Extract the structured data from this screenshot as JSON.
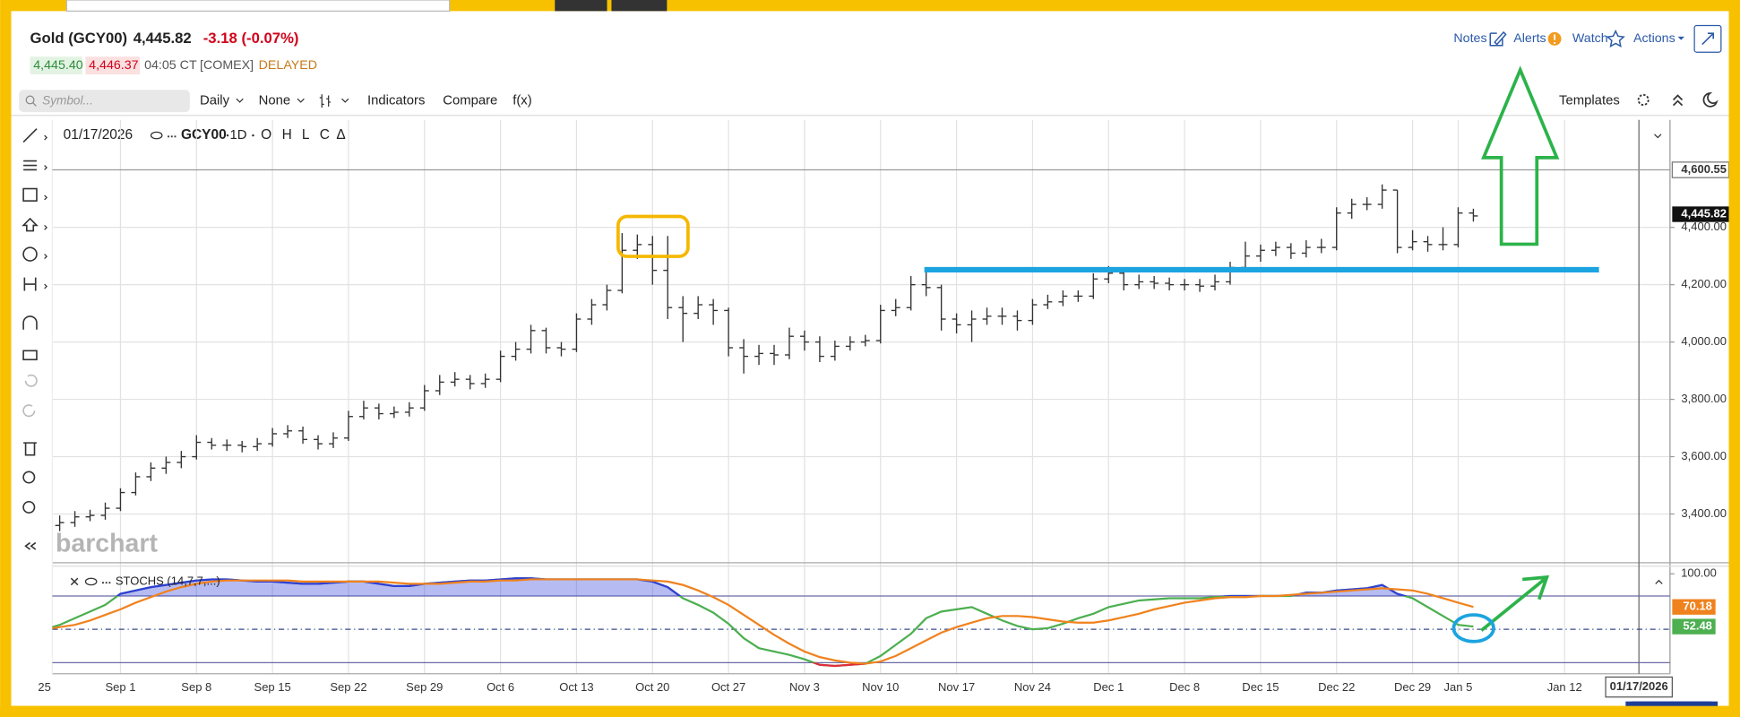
{
  "header": {
    "title": "Gold (GCY00)",
    "last": "4,445.82",
    "change": "-3.18 (-0.07%)",
    "bid": "4,445.40",
    "ask": "4,446.37",
    "time": "04:05 CT",
    "exchange": "[COMEX]",
    "status": "DELAYED"
  },
  "actions": [
    "Notes",
    "Alerts",
    "Watch",
    "Actions"
  ],
  "toolbar": {
    "symbol_placeholder": "Symbol...",
    "interval": "Daily",
    "aggregation": "None",
    "items": [
      "Indicators",
      "Compare",
      "f(x)"
    ],
    "templates": "Templates"
  },
  "chart_data": [
    {
      "type": "ohlc",
      "legend": {
        "date": "01/17/2026",
        "symbol": "GCY00",
        "interval": "1D",
        "fields": [
          "O",
          "H",
          "L",
          "C",
          "Δ"
        ]
      },
      "watermark": "barchart",
      "categories": [
        "25",
        null,
        null,
        null,
        null,
        "Sep 1",
        null,
        null,
        null,
        null,
        "Sep 8",
        null,
        null,
        null,
        null,
        "Sep 15",
        null,
        null,
        null,
        null,
        "Sep 22",
        null,
        null,
        null,
        null,
        "Sep 29",
        null,
        null,
        null,
        null,
        "Oct 6",
        null,
        null,
        null,
        null,
        "Oct 13",
        null,
        null,
        null,
        null,
        "Oct 20",
        null,
        null,
        null,
        null,
        "Oct 27",
        null,
        null,
        null,
        null,
        "Nov 3",
        null,
        null,
        null,
        null,
        "Nov 10",
        null,
        null,
        null,
        null,
        "Nov 17",
        null,
        null,
        null,
        null,
        "Nov 24",
        null,
        null,
        null,
        null,
        "Dec 1",
        null,
        null,
        null,
        null,
        "Dec 8",
        null,
        null,
        null,
        null,
        "Dec 15",
        null,
        null,
        null,
        null,
        "Dec 22",
        null,
        null,
        null,
        null,
        "Dec 29",
        null,
        null,
        "Jan 5",
        null,
        null,
        null,
        null,
        null,
        null,
        "Jan 12"
      ],
      "open": [
        null,
        3360,
        3370,
        3390,
        3395,
        3420,
        3475,
        3530,
        3560,
        3580,
        3600,
        3650,
        3640,
        3640,
        3635,
        3645,
        3680,
        3690,
        3660,
        3645,
        3665,
        3740,
        3770,
        3750,
        3755,
        3770,
        3830,
        3860,
        3870,
        3855,
        3870,
        3950,
        3975,
        4040,
        3980,
        3975,
        4080,
        4130,
        4180,
        4320,
        4340,
        4250,
        4120,
        4100,
        4130,
        4110,
        3980,
        3950,
        3960,
        3955,
        4020,
        4000,
        3950,
        3985,
        4000,
        4005,
        4110,
        4120,
        4200,
        4190,
        4080,
        4060,
        4080,
        4090,
        4090,
        4075,
        4130,
        4140,
        4160,
        4160,
        4220,
        4240,
        4200,
        4210,
        4205,
        4200,
        4200,
        4195,
        4210,
        4260,
        4300,
        4320,
        4330,
        4310,
        4330,
        4330,
        4450,
        4480,
        4480,
        4530,
        4330,
        4350,
        4340,
        4340,
        4450,
        null,
        null,
        null,
        null,
        null,
        null
      ],
      "high": [
        null,
        3395,
        3410,
        3415,
        3440,
        3490,
        3545,
        3580,
        3600,
        3620,
        3675,
        3665,
        3660,
        3655,
        3665,
        3700,
        3710,
        3705,
        3675,
        3685,
        3760,
        3795,
        3785,
        3775,
        3790,
        3850,
        3885,
        3895,
        3885,
        3890,
        3970,
        4000,
        4060,
        4050,
        4000,
        4100,
        4150,
        4200,
        4380,
        4375,
        4370,
        4370,
        4160,
        4160,
        4150,
        4120,
        4010,
        3990,
        3990,
        4050,
        4040,
        4020,
        4005,
        4020,
        4025,
        4130,
        4150,
        4230,
        4245,
        4200,
        4100,
        4110,
        4120,
        4120,
        4110,
        4150,
        4165,
        4180,
        4180,
        4240,
        4265,
        4255,
        4235,
        4230,
        4225,
        4220,
        4220,
        4235,
        4280,
        4350,
        4340,
        4350,
        4345,
        4355,
        4360,
        4470,
        4500,
        4505,
        4550,
        4530,
        4390,
        4370,
        4400,
        4470,
        4465,
        null,
        null,
        null,
        null,
        null,
        null
      ],
      "low": [
        null,
        3340,
        3355,
        3375,
        3380,
        3410,
        3465,
        3515,
        3540,
        3560,
        3590,
        3625,
        3620,
        3615,
        3620,
        3635,
        3665,
        3645,
        3625,
        3630,
        3655,
        3730,
        3730,
        3735,
        3740,
        3760,
        3815,
        3845,
        3835,
        3840,
        3860,
        3935,
        3960,
        3960,
        3950,
        3965,
        4060,
        4110,
        4170,
        4290,
        4200,
        4080,
        4000,
        4080,
        4060,
        3950,
        3890,
        3920,
        3920,
        3940,
        3970,
        3930,
        3935,
        3970,
        3985,
        3995,
        4090,
        4110,
        4160,
        4040,
        4030,
        4000,
        4060,
        4060,
        4040,
        4060,
        4115,
        4125,
        4140,
        4150,
        4205,
        4180,
        4185,
        4185,
        4180,
        4180,
        4175,
        4180,
        4200,
        4250,
        4280,
        4300,
        4290,
        4295,
        4310,
        4320,
        4430,
        4460,
        4465,
        4310,
        4320,
        4315,
        4320,
        4330,
        4420,
        null,
        null,
        null,
        null,
        null,
        null
      ],
      "close": [
        null,
        3370,
        3390,
        3395,
        3420,
        3475,
        3530,
        3560,
        3580,
        3600,
        3650,
        3640,
        3640,
        3635,
        3645,
        3680,
        3690,
        3660,
        3645,
        3665,
        3740,
        3770,
        3750,
        3755,
        3770,
        3830,
        3860,
        3870,
        3855,
        3870,
        3950,
        3975,
        4040,
        3980,
        3975,
        4080,
        4130,
        4180,
        4320,
        4340,
        4250,
        4120,
        4100,
        4130,
        4110,
        3980,
        3950,
        3960,
        3955,
        4020,
        4000,
        3950,
        3985,
        4000,
        4005,
        4110,
        4120,
        4200,
        4190,
        4080,
        4060,
        4080,
        4090,
        4090,
        4075,
        4130,
        4140,
        4160,
        4160,
        4220,
        4240,
        4200,
        4210,
        4205,
        4200,
        4200,
        4195,
        4210,
        4260,
        4300,
        4320,
        4330,
        4310,
        4330,
        4330,
        4450,
        4480,
        4480,
        4530,
        4330,
        4350,
        4340,
        4340,
        4450,
        4440,
        null,
        null,
        null,
        null,
        null,
        null
      ],
      "color": "#333333",
      "ylim": [
        3230,
        4775
      ],
      "yticks": [
        {
          "value": 3400,
          "label": "3,400.00"
        },
        {
          "value": 3600,
          "label": "3,600.00"
        },
        {
          "value": 3800,
          "label": "3,800.00"
        },
        {
          "value": 4000,
          "label": "4,000.00"
        },
        {
          "value": 4200,
          "label": "4,200.00"
        },
        {
          "value": 4400,
          "label": "4,400.00"
        }
      ],
      "price_line": {
        "value": 4600.55,
        "label": "4,600.55"
      },
      "last_price": {
        "value": 4445.82,
        "label": "4,445.82"
      },
      "grid": true
    },
    {
      "type": "line",
      "title": "STOCHS (14,7,7,...)",
      "series": [
        {
          "color": "#4caf50",
          "values": [
            50,
            54,
            60,
            66,
            72,
            82,
            85,
            88,
            90,
            92,
            94,
            95,
            95,
            94,
            93,
            93,
            92,
            91,
            91,
            92,
            93,
            93,
            91,
            89,
            89,
            91,
            92,
            93,
            94,
            94,
            95,
            96,
            96,
            95,
            95,
            95,
            95,
            95,
            95,
            95,
            93,
            88,
            78,
            72,
            65,
            55,
            42,
            33,
            30,
            27,
            23,
            18,
            17,
            18,
            19,
            26,
            36,
            46,
            60,
            66,
            68,
            70,
            64,
            58,
            53,
            50,
            51,
            55,
            60,
            64,
            70,
            73,
            76,
            77,
            78,
            78,
            78,
            79,
            80,
            80,
            80,
            80,
            80,
            83,
            83,
            85,
            86,
            87,
            90,
            82,
            78,
            70,
            62,
            54,
            52.48,
            null,
            null,
            null,
            null,
            null,
            null
          ]
        },
        {
          "color": "#f0821e",
          "values": [
            50,
            52,
            54,
            58,
            63,
            68,
            74,
            79,
            84,
            88,
            91,
            93,
            94,
            94,
            94,
            94,
            94,
            93,
            93,
            93,
            93,
            93,
            93,
            92,
            91,
            91,
            91,
            92,
            93,
            93,
            94,
            94,
            95,
            95,
            95,
            95,
            95,
            95,
            95,
            95,
            94,
            93,
            90,
            85,
            79,
            72,
            63,
            54,
            45,
            37,
            30,
            25,
            22,
            20,
            19,
            21,
            26,
            33,
            40,
            47,
            52,
            56,
            60,
            62,
            62,
            61,
            59,
            57,
            56,
            56,
            58,
            61,
            64,
            68,
            71,
            74,
            76,
            78,
            79,
            79,
            80,
            80,
            81,
            82,
            83,
            84,
            85,
            86,
            87,
            86,
            85,
            82,
            78,
            74,
            70.18,
            null,
            null,
            null,
            null,
            null,
            null
          ]
        }
      ],
      "ylim": [
        10,
        107
      ],
      "yticks": [
        {
          "value": 100,
          "label": "100.00"
        }
      ],
      "levels": [
        80,
        50,
        20
      ],
      "overbought_color": "#2f3fd6",
      "oversold_color": "#e02d3c"
    }
  ]
}
